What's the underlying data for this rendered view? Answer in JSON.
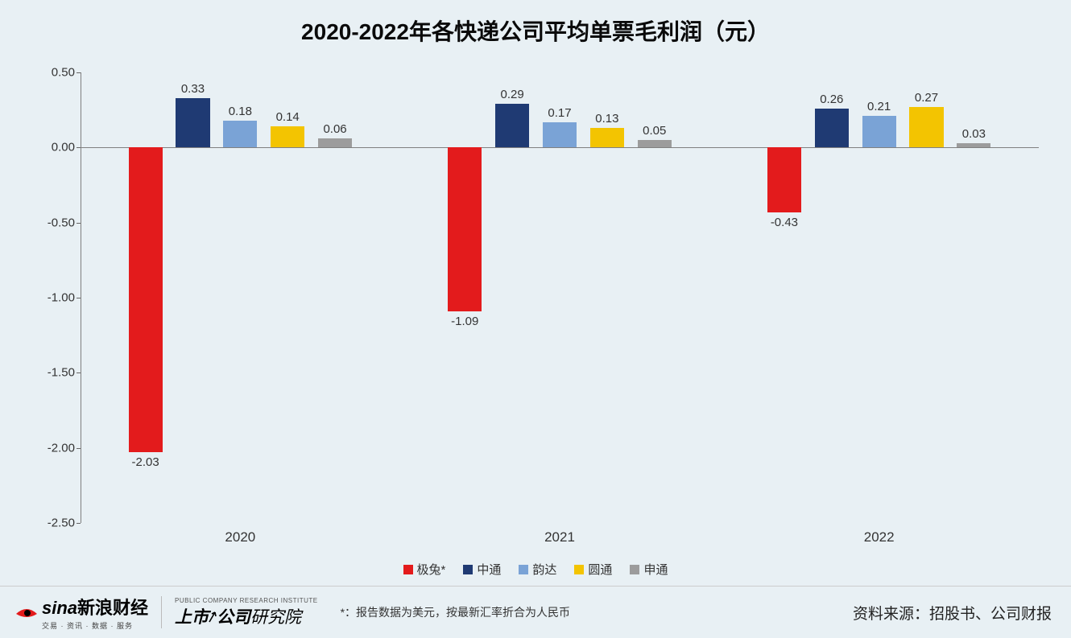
{
  "chart": {
    "type": "bar",
    "title": "2020-2022年各快递公司平均单票毛利润（元）",
    "title_fontsize": 28,
    "background_color": "#e8f0f4",
    "categories": [
      "2020",
      "2021",
      "2022"
    ],
    "series": [
      {
        "name": "极兔*",
        "color": "#e31b1c",
        "values": [
          -2.03,
          -1.09,
          -0.43
        ]
      },
      {
        "name": "中通",
        "color": "#1f3a73",
        "values": [
          0.33,
          0.29,
          0.26
        ]
      },
      {
        "name": "韵达",
        "color": "#7aa3d6",
        "values": [
          0.18,
          0.17,
          0.21
        ]
      },
      {
        "name": "圆通",
        "color": "#f3c401",
        "values": [
          0.14,
          0.13,
          0.27
        ]
      },
      {
        "name": "申通",
        "color": "#9c9c9c",
        "values": [
          0.06,
          0.05,
          0.03
        ]
      }
    ],
    "ylim": [
      -2.5,
      0.5
    ],
    "ytick_step": 0.5,
    "ytick_decimals": 2,
    "axis_color": "#808080",
    "label_fontsize": 15,
    "xcat_fontsize": 17,
    "bar_group_width_ratio": 0.7,
    "bar_gap_ratio": 0.06
  },
  "legend": {
    "items": [
      {
        "label": "极兔*",
        "color": "#e31b1c"
      },
      {
        "label": "中通",
        "color": "#1f3a73"
      },
      {
        "label": "韵达",
        "color": "#7aa3d6"
      },
      {
        "label": "圆通",
        "color": "#f3c401"
      },
      {
        "label": "申通",
        "color": "#9c9c9c"
      }
    ]
  },
  "footer": {
    "sina_logo_text": "新浪财经",
    "sina_logo_sub": "交易 · 资讯 · 数据 · 服务",
    "sina_logo_latin": "sina",
    "sina_logo_color": "#e31b1c",
    "institute_en": "PUBLIC COMPANY RESEARCH INSTITUTE",
    "institute_cn_1": "上市",
    "institute_cn_2": "公司",
    "institute_cn_3": "研究院",
    "footnote": "*：报告数据为美元，按最新汇率折合为人民币",
    "source": "资料来源：招股书、公司财报"
  }
}
